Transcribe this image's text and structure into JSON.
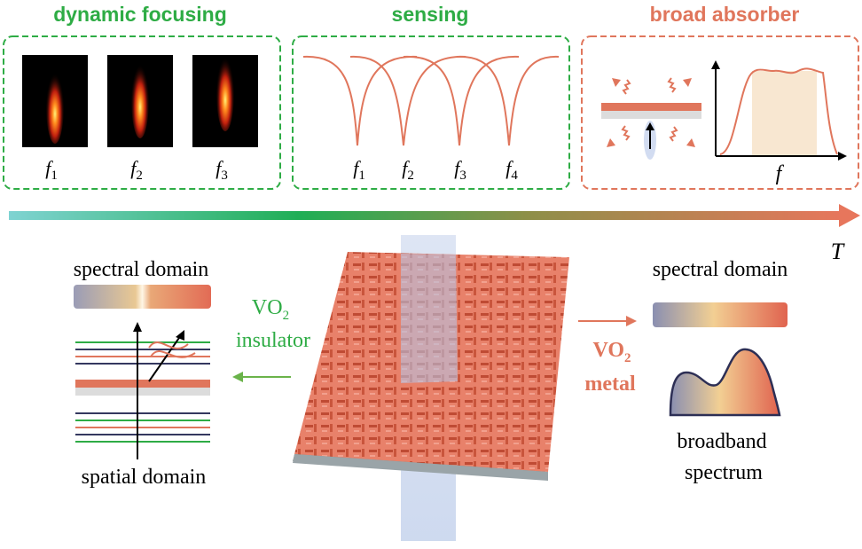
{
  "panels": {
    "focusing": {
      "title": "dynamic focusing",
      "labels": [
        "f1",
        "f2",
        "f3"
      ],
      "title_color": "#2eac45"
    },
    "sensing": {
      "title": "sensing",
      "labels": [
        "f1",
        "f2",
        "f3",
        "f4"
      ],
      "title_color": "#2eac45"
    },
    "absorber": {
      "title": "broad absorber",
      "axis_label": "f",
      "title_color": "#e0765c"
    }
  },
  "temperature_label": "T",
  "left": {
    "spectral_label": "spectral domain",
    "spatial_label": "spatial domain",
    "vo2_line1": "VO",
    "vo2_sub": "2",
    "vo2_line2": "insulator"
  },
  "right": {
    "spectral_label": "spectral domain",
    "vo2_line1": "VO",
    "vo2_sub": "2",
    "vo2_line2": "metal",
    "spectrum_line1": "broadband",
    "spectrum_line2": "spectrum"
  },
  "colors": {
    "green": "#2eac45",
    "orange": "#e0765c",
    "teal_start": "#5ec6c0"
  }
}
